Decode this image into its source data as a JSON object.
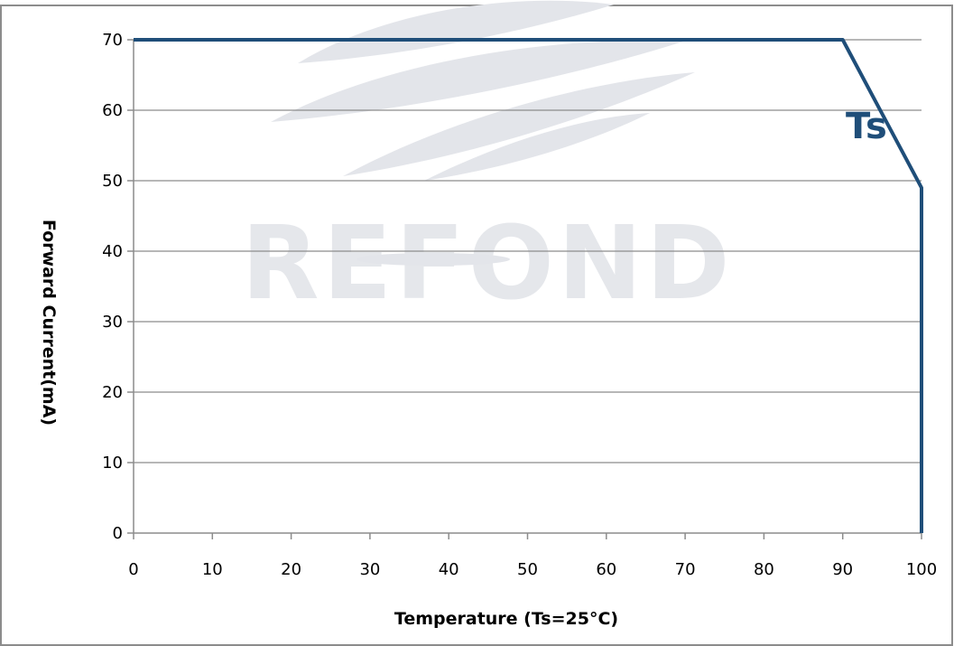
{
  "watermark": "REFOND",
  "chart_data": {
    "type": "line",
    "xlabel": "Temperature (Ts=25°C)",
    "ylabel": "Forward Current(mA)",
    "xlim": [
      0,
      100
    ],
    "ylim": [
      0,
      70
    ],
    "xticks": [
      0,
      10,
      20,
      30,
      40,
      50,
      60,
      70,
      80,
      90,
      100
    ],
    "yticks": [
      0,
      10,
      20,
      30,
      40,
      50,
      60,
      70
    ],
    "grid": true,
    "series": [
      {
        "name": "Ts",
        "color": "#1f4e79",
        "points": [
          [
            0,
            70
          ],
          [
            90,
            70
          ],
          [
            100,
            49
          ],
          [
            100,
            0
          ]
        ]
      }
    ],
    "annotations": [
      {
        "text": "Ts",
        "x": 93,
        "y": 56
      }
    ]
  }
}
